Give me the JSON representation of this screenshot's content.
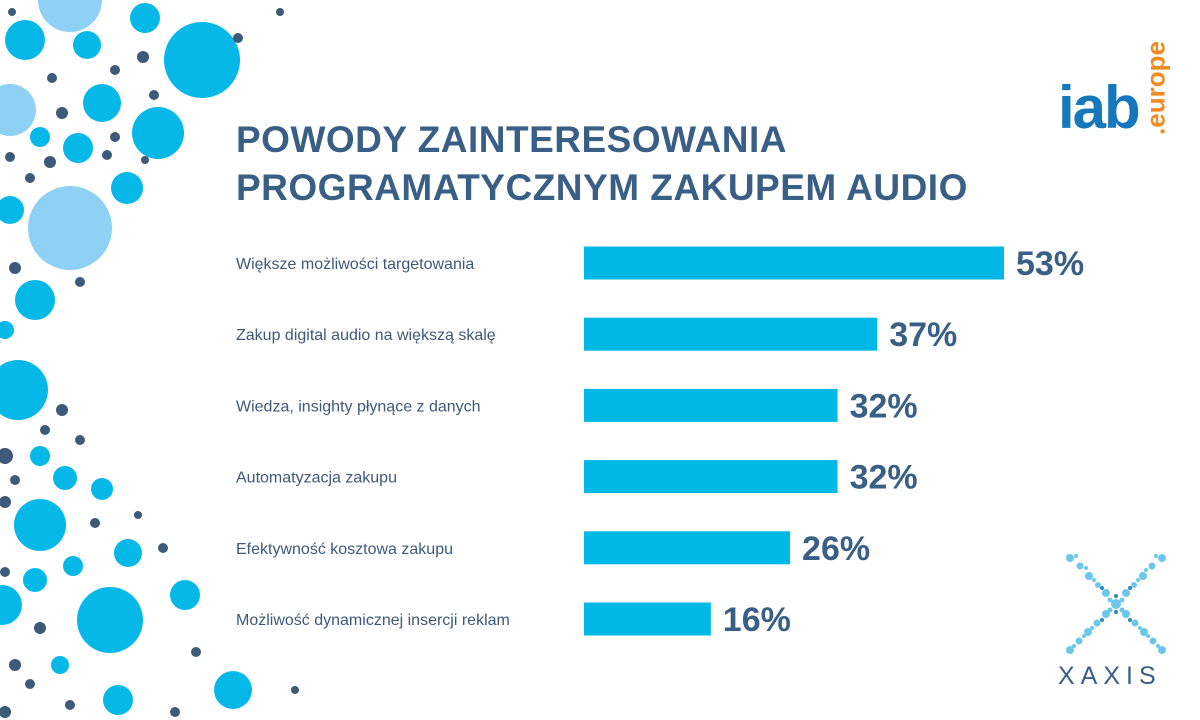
{
  "title": {
    "line1": "POWODY ZAINTERESOWANIA",
    "line2": "PROGRAMATYCZNYM ZAKUPEM AUDIO"
  },
  "logos": {
    "iab": "iab",
    "europe": ".europe",
    "xaxis": "XAXIS"
  },
  "colors": {
    "bar": "#00b8e6",
    "title": "#3a5f86",
    "label": "#3d5a78",
    "iab_blue": "#1777bd",
    "iab_orange": "#f18a21"
  },
  "chart_data": {
    "type": "bar",
    "orientation": "horizontal",
    "title": "POWODY ZAINTERESOWANIA PROGRAMATYCZNYM ZAKUPEM AUDIO",
    "categories": [
      "Większe możliwości targetowania",
      "Zakup digital audio na większą skalę",
      "Wiedza, insighty płynące z danych",
      "Automatyzacja zakupu",
      "Efektywność kosztowa zakupu",
      "Możliwość dynamicznej insercji reklam"
    ],
    "values": [
      53,
      37,
      32,
      32,
      26,
      16
    ],
    "value_labels": [
      "53%",
      "37%",
      "32%",
      "32%",
      "26%",
      "16%"
    ],
    "unit": "%",
    "xlim": [
      0,
      53
    ],
    "xlabel": "",
    "ylabel": "",
    "grid": false,
    "legend": "none"
  }
}
